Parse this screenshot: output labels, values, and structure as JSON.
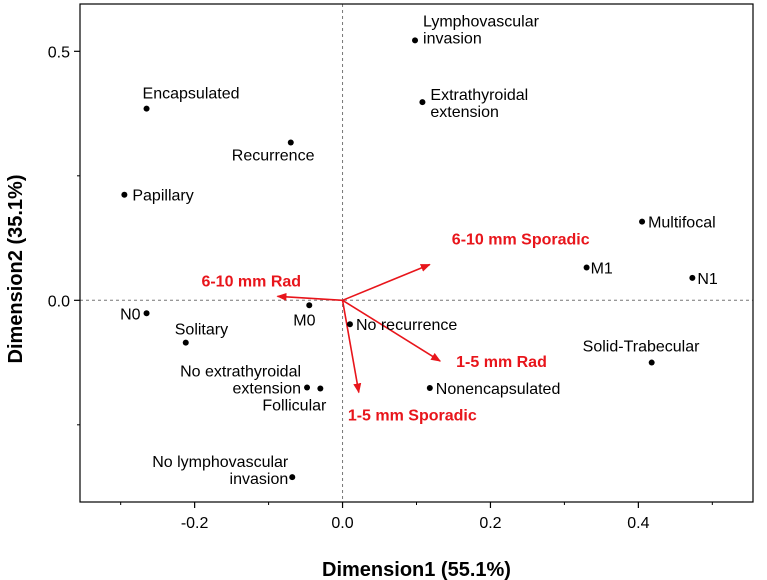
{
  "chart_data": {
    "type": "scatter",
    "xlabel": "Dimension1 (55.1%)",
    "ylabel": "Dimension2 (35.1%)",
    "xlim": [
      -0.355,
      0.555
    ],
    "ylim": [
      -0.405,
      0.595
    ],
    "x_ticks": [
      -0.2,
      0.0,
      0.2,
      0.4
    ],
    "x_tick_labels": [
      "-0.2",
      "0.0",
      "0.2",
      "0.4"
    ],
    "y_ticks": [
      0.0,
      0.5
    ],
    "y_tick_labels": [
      "0.0",
      "0.5"
    ],
    "reference_lines": {
      "x": 0,
      "y": 0,
      "style": "dashed"
    },
    "grid": false,
    "vector_color": "#e8151b",
    "point_color": "#000000",
    "points": [
      {
        "label": "Lymphovascular\ninvasion",
        "x": 0.098,
        "y": 0.522
      },
      {
        "label": "Extrathyroidal\nextension",
        "x": 0.108,
        "y": 0.398
      },
      {
        "label": "Encapsulated",
        "x": -0.265,
        "y": 0.385
      },
      {
        "label": "Recurrence",
        "x": -0.07,
        "y": 0.317
      },
      {
        "label": "Papillary",
        "x": -0.295,
        "y": 0.212
      },
      {
        "label": "Multifocal",
        "x": 0.405,
        "y": 0.158
      },
      {
        "label": "M1",
        "x": 0.33,
        "y": 0.066
      },
      {
        "label": "N1",
        "x": 0.473,
        "y": 0.045
      },
      {
        "label": "N0",
        "x": -0.265,
        "y": -0.026
      },
      {
        "label": "M0",
        "x": -0.045,
        "y": -0.01
      },
      {
        "label": "No recurrence",
        "x": 0.01,
        "y": -0.048
      },
      {
        "label": "Solitary",
        "x": -0.212,
        "y": -0.085
      },
      {
        "label": "Solid-Trabecular",
        "x": 0.418,
        "y": -0.125
      },
      {
        "label": "No extrathyroidal\nextension",
        "x": -0.048,
        "y": -0.175
      },
      {
        "label": "Follicular",
        "x": -0.03,
        "y": -0.177
      },
      {
        "label": "Nonencapsulated",
        "x": 0.118,
        "y": -0.176
      },
      {
        "label": "No lymphovascular\ninvasion",
        "x": -0.068,
        "y": -0.355
      }
    ],
    "vectors": [
      {
        "label": "6-10 mm Sporadic",
        "x": 0.118,
        "y": 0.072
      },
      {
        "label": "6-10 mm Rad",
        "x": -0.088,
        "y": 0.008
      },
      {
        "label": "1-5 mm Rad",
        "x": 0.132,
        "y": -0.122
      },
      {
        "label": "1-5 mm Sporadic",
        "x": 0.022,
        "y": -0.185
      }
    ]
  }
}
